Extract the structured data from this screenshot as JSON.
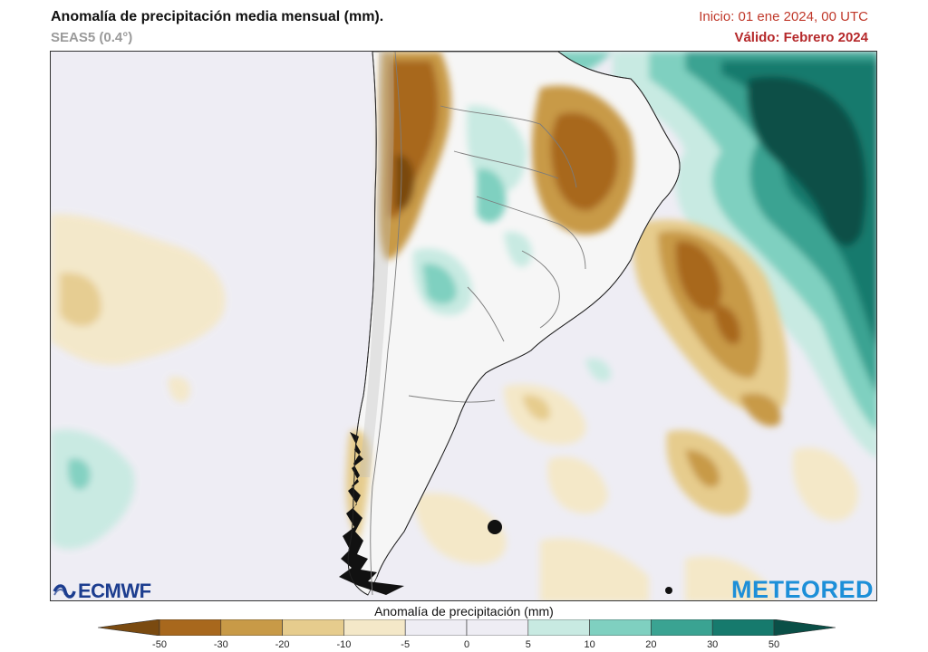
{
  "header": {
    "title": "Anomalía de precipitación media mensual (mm).",
    "subtitle": "SEAS5 (0.4°)",
    "init": "Inicio: 01 ene 2024, 00 UTC",
    "valid": "Válido: Febrero 2024"
  },
  "logos": {
    "left": "ECMWF",
    "right": "METEORED"
  },
  "legend": {
    "title": "Anomalía de precipitación (mm)",
    "ticks": [
      "-50",
      "-30",
      "-20",
      "-10",
      "-5",
      "0",
      "5",
      "10",
      "20",
      "30",
      "50"
    ],
    "colors": [
      "#7a4a10",
      "#a8681d",
      "#c89a47",
      "#e6cc8d",
      "#f4e8c8",
      "#eeedf4",
      "#eeedf4",
      "#c8eae2",
      "#7fd0c0",
      "#3aa392",
      "#167a6d",
      "#0a4f47"
    ]
  },
  "colors": {
    "neutral": "#eeedf4",
    "land": "#f6f6f6",
    "border": "#888888"
  }
}
